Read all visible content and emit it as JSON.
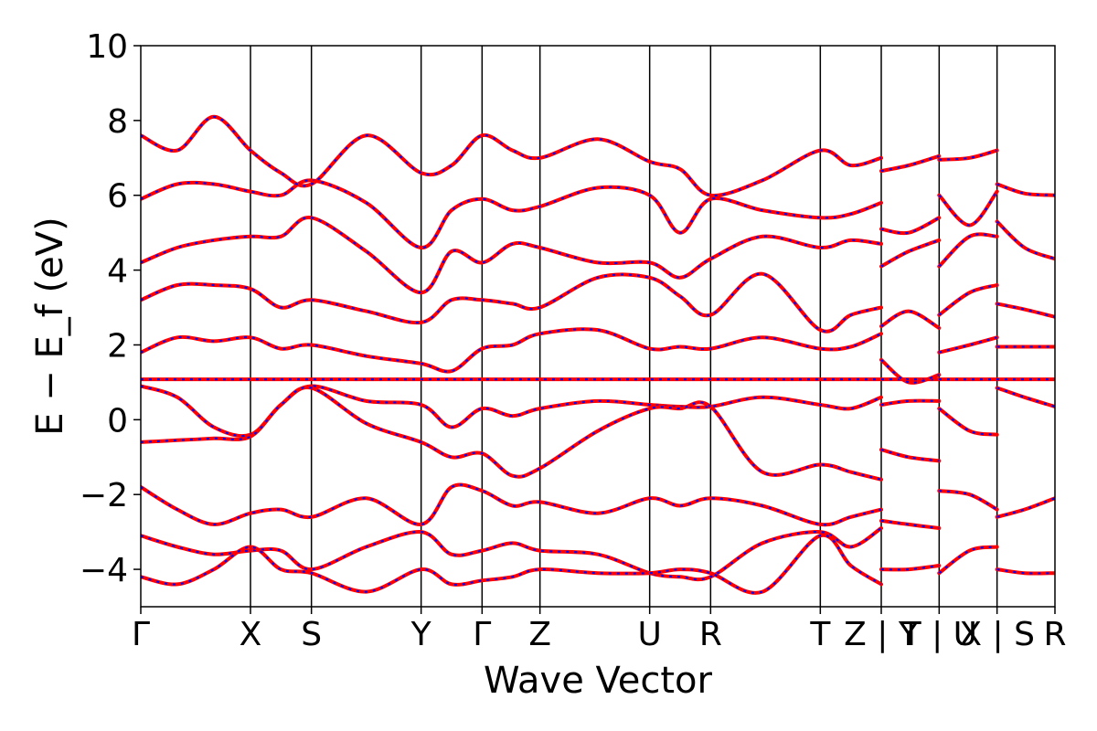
{
  "chart_data": {
    "type": "line",
    "title": "",
    "xlabel": "Wave Vector",
    "ylabel": "E − E_f (eV)",
    "ylim": [
      -5,
      10
    ],
    "y_ticks": [
      -4,
      -2,
      0,
      2,
      4,
      6,
      8,
      10
    ],
    "y_tick_labels": [
      "−4",
      "−2",
      "0",
      "2",
      "4",
      "6",
      "8",
      "10"
    ],
    "xlim": [
      0,
      15
    ],
    "k_points": [
      {
        "label": "Γ",
        "x": 0.0
      },
      {
        "label": "X",
        "x": 1.8
      },
      {
        "label": "S",
        "x": 2.8
      },
      {
        "label": "Y",
        "x": 4.6
      },
      {
        "label": "Γ",
        "x": 5.6
      },
      {
        "label": "Z",
        "x": 6.55
      },
      {
        "label": "U",
        "x": 8.35
      },
      {
        "label": "R",
        "x": 9.35
      },
      {
        "label": "T",
        "x": 11.15
      },
      {
        "label": "Z | Y",
        "x": 12.15
      },
      {
        "label": "T | U",
        "x": 13.1
      },
      {
        "label": "X | S",
        "x": 14.05
      },
      {
        "label": "R",
        "x": 15.0
      }
    ],
    "grid": false,
    "legend": "none",
    "colors": {
      "series_a": "#ff0000",
      "series_b": "#0000ff"
    },
    "series": [
      {
        "x": [
          0,
          15
        ],
        "y": [
          1.08,
          1.08
        ]
      },
      {
        "x": [
          0,
          0.6,
          1.2,
          1.8,
          2.3,
          2.8,
          3.7,
          4.6,
          5.1,
          5.6,
          6.1,
          6.55,
          7.5,
          8.35,
          8.85,
          9.35,
          10.2,
          11.15,
          11.65,
          12.15
        ],
        "y": [
          0.9,
          0.6,
          -0.2,
          -0.4,
          0.4,
          0.9,
          0.5,
          0.4,
          -0.2,
          0.3,
          0.1,
          0.3,
          0.5,
          0.4,
          0.35,
          0.35,
          0.6,
          0.4,
          0.3,
          0.6
        ]
      },
      {
        "x": [
          0,
          0.6,
          1.2,
          1.8,
          2.3,
          2.8,
          3.7,
          4.6,
          5.1,
          5.6,
          6.1,
          6.55,
          7.5,
          8.35,
          8.85,
          9.35,
          10.2,
          11.15,
          11.65,
          12.15
        ],
        "y": [
          -0.6,
          -0.55,
          -0.5,
          -0.45,
          0.4,
          0.85,
          -0.1,
          -0.6,
          -1.0,
          -0.9,
          -1.5,
          -1.3,
          -0.3,
          0.3,
          0.3,
          0.35,
          -1.4,
          -1.2,
          -1.4,
          -1.6
        ]
      },
      {
        "x": [
          0,
          0.6,
          1.2,
          1.8,
          2.3,
          2.8,
          3.7,
          4.6,
          5.1,
          5.6,
          6.1,
          6.55,
          7.5,
          8.35,
          8.85,
          9.35,
          10.2,
          11.15,
          11.65,
          12.15
        ],
        "y": [
          1.8,
          2.2,
          2.1,
          2.2,
          1.9,
          2.0,
          1.7,
          1.5,
          1.3,
          1.9,
          2.0,
          2.3,
          2.4,
          1.9,
          1.95,
          1.9,
          2.2,
          1.9,
          1.95,
          2.3
        ]
      },
      {
        "x": [
          0,
          0.6,
          1.2,
          1.8,
          2.3,
          2.8,
          3.7,
          4.6,
          5.1,
          5.6,
          6.1,
          6.55,
          7.5,
          8.35,
          8.85,
          9.35,
          10.2,
          11.15,
          11.65,
          12.15
        ],
        "y": [
          3.2,
          3.6,
          3.6,
          3.5,
          3.0,
          3.2,
          2.9,
          2.6,
          3.2,
          3.2,
          3.1,
          3.0,
          3.8,
          3.8,
          3.3,
          2.8,
          3.9,
          2.4,
          2.8,
          3.0
        ]
      },
      {
        "x": [
          0,
          0.6,
          1.2,
          1.8,
          2.3,
          2.8,
          3.7,
          4.6,
          5.1,
          5.6,
          6.1,
          6.55,
          7.5,
          8.35,
          8.85,
          9.35,
          10.2,
          11.15,
          11.65,
          12.15
        ],
        "y": [
          4.2,
          4.6,
          4.8,
          4.9,
          4.9,
          5.4,
          4.5,
          3.4,
          4.5,
          4.2,
          4.7,
          4.6,
          4.2,
          4.2,
          3.8,
          4.3,
          4.9,
          4.6,
          4.8,
          4.7
        ]
      },
      {
        "x": [
          0,
          0.6,
          1.2,
          1.8,
          2.3,
          2.8,
          3.7,
          4.6,
          5.1,
          5.6,
          6.1,
          6.55,
          7.5,
          8.35,
          8.85,
          9.35,
          10.2,
          11.15,
          11.65,
          12.15
        ],
        "y": [
          5.9,
          6.3,
          6.3,
          6.1,
          6.0,
          6.4,
          5.8,
          4.6,
          5.6,
          5.9,
          5.6,
          5.7,
          6.2,
          6.0,
          5.0,
          5.9,
          5.6,
          5.4,
          5.5,
          5.8
        ]
      },
      {
        "x": [
          0,
          0.6,
          1.2,
          1.8,
          2.3,
          2.8,
          3.7,
          4.6,
          5.1,
          5.6,
          6.1,
          6.55,
          7.5,
          8.35,
          8.85,
          9.35,
          10.2,
          11.15,
          11.65,
          12.15
        ],
        "y": [
          7.6,
          7.2,
          8.1,
          7.2,
          6.6,
          6.3,
          7.6,
          6.6,
          6.8,
          7.6,
          7.2,
          7.0,
          7.5,
          6.9,
          6.7,
          6.0,
          6.4,
          7.2,
          6.8,
          7.0
        ]
      },
      {
        "x": [
          0,
          0.6,
          1.2,
          1.8,
          2.3,
          2.8,
          3.7,
          4.6,
          5.1,
          5.6,
          6.1,
          6.55,
          7.5,
          8.35,
          8.85,
          9.35,
          10.2,
          11.15,
          11.65,
          12.15
        ],
        "y": [
          -1.8,
          -2.4,
          -2.8,
          -2.5,
          -2.4,
          -2.6,
          -2.1,
          -2.8,
          -1.8,
          -1.9,
          -2.3,
          -2.2,
          -2.5,
          -2.1,
          -2.3,
          -2.1,
          -2.3,
          -2.8,
          -2.6,
          -2.4
        ]
      },
      {
        "x": [
          0,
          0.6,
          1.2,
          1.8,
          2.3,
          2.8,
          3.7,
          4.6,
          5.1,
          5.6,
          6.1,
          6.55,
          7.5,
          8.35,
          8.85,
          9.35,
          10.2,
          11.15,
          11.65,
          12.15
        ],
        "y": [
          -3.1,
          -3.4,
          -3.6,
          -3.5,
          -3.5,
          -4.0,
          -3.4,
          -3.0,
          -3.6,
          -3.5,
          -3.3,
          -3.5,
          -3.6,
          -4.1,
          -4.2,
          -4.2,
          -3.3,
          -3.0,
          -3.4,
          -2.9
        ]
      },
      {
        "x": [
          0,
          0.6,
          1.2,
          1.8,
          2.3,
          2.8,
          3.7,
          4.6,
          5.1,
          5.6,
          6.1,
          6.55,
          7.5,
          8.35,
          8.85,
          9.35,
          10.2,
          11.15,
          11.65,
          12.15
        ],
        "y": [
          -4.2,
          -4.4,
          -4.0,
          -3.4,
          -4.0,
          -4.1,
          -4.6,
          -4.0,
          -4.4,
          -4.3,
          -4.2,
          -4.0,
          -4.1,
          -4.1,
          -4.0,
          -4.1,
          -4.6,
          -3.1,
          -3.9,
          -4.4
        ]
      },
      {
        "x": [
          12.15,
          12.6,
          13.1
        ],
        "y": [
          6.65,
          6.8,
          7.05
        ]
      },
      {
        "x": [
          12.15,
          12.6,
          13.1
        ],
        "y": [
          5.1,
          5.0,
          5.4
        ]
      },
      {
        "x": [
          12.15,
          12.6,
          13.1
        ],
        "y": [
          4.1,
          4.5,
          4.8
        ]
      },
      {
        "x": [
          12.15,
          12.6,
          13.1
        ],
        "y": [
          2.5,
          2.9,
          2.45
        ]
      },
      {
        "x": [
          12.15,
          12.6,
          13.1
        ],
        "y": [
          1.6,
          1.0,
          1.2
        ]
      },
      {
        "x": [
          12.15,
          12.6,
          13.1
        ],
        "y": [
          0.4,
          0.5,
          0.5
        ]
      },
      {
        "x": [
          12.15,
          12.6,
          13.1
        ],
        "y": [
          -0.8,
          -1.0,
          -1.1
        ]
      },
      {
        "x": [
          12.15,
          12.6,
          13.1
        ],
        "y": [
          -2.7,
          -2.8,
          -2.9
        ]
      },
      {
        "x": [
          12.15,
          12.6,
          13.1
        ],
        "y": [
          -4.0,
          -4.0,
          -3.9
        ]
      },
      {
        "x": [
          13.1,
          13.6,
          14.05
        ],
        "y": [
          6.95,
          7.0,
          7.2
        ]
      },
      {
        "x": [
          13.1,
          13.6,
          14.05
        ],
        "y": [
          6.0,
          5.2,
          6.1
        ]
      },
      {
        "x": [
          13.1,
          13.6,
          14.05
        ],
        "y": [
          4.1,
          4.9,
          4.9
        ]
      },
      {
        "x": [
          13.1,
          13.6,
          14.05
        ],
        "y": [
          2.8,
          3.4,
          3.6
        ]
      },
      {
        "x": [
          13.1,
          13.6,
          14.05
        ],
        "y": [
          1.8,
          2.0,
          2.2
        ]
      },
      {
        "x": [
          13.1,
          13.6,
          14.05
        ],
        "y": [
          0.3,
          -0.3,
          -0.4
        ]
      },
      {
        "x": [
          13.1,
          13.6,
          14.05
        ],
        "y": [
          -1.9,
          -2.0,
          -2.4
        ]
      },
      {
        "x": [
          13.1,
          13.6,
          14.05
        ],
        "y": [
          -4.1,
          -3.5,
          -3.4
        ]
      },
      {
        "x": [
          14.05,
          14.5,
          15.0
        ],
        "y": [
          6.3,
          6.05,
          6.0
        ]
      },
      {
        "x": [
          14.05,
          14.5,
          15.0
        ],
        "y": [
          5.3,
          4.6,
          4.3
        ]
      },
      {
        "x": [
          14.05,
          14.5,
          15.0
        ],
        "y": [
          3.1,
          2.95,
          2.75
        ]
      },
      {
        "x": [
          14.05,
          14.5,
          15.0
        ],
        "y": [
          1.95,
          1.95,
          1.95
        ]
      },
      {
        "x": [
          14.05,
          14.5,
          15.0
        ],
        "y": [
          0.85,
          0.6,
          0.35
        ]
      },
      {
        "x": [
          14.05,
          14.5,
          15.0
        ],
        "y": [
          -2.6,
          -2.4,
          -2.1
        ]
      },
      {
        "x": [
          14.05,
          14.5,
          15.0
        ],
        "y": [
          -4.0,
          -4.1,
          -4.1
        ]
      }
    ]
  }
}
